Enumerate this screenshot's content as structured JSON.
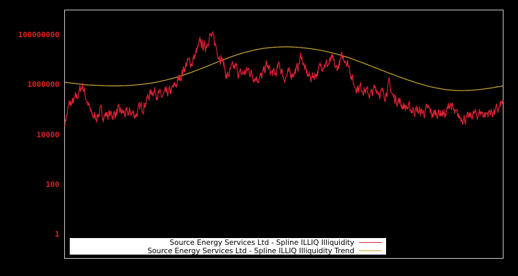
{
  "chart_data": {
    "type": "line",
    "title": "",
    "xlabel": "",
    "ylabel": "",
    "yscale": "log",
    "ylim": [
      0.1,
      1000000000
    ],
    "y_ticks": [
      {
        "label": "100000000",
        "value": 100000000
      },
      {
        "label": "1000000",
        "value": 1000000
      },
      {
        "label": "10000",
        "value": 10000
      },
      {
        "label": "100",
        "value": 100
      },
      {
        "label": "1",
        "value": 1
      }
    ],
    "x_ticks": [],
    "grid": false,
    "legend_position": "lower center",
    "x": "index (0-100, normalized time; no x tick labels shown)",
    "series": [
      {
        "name": "Source Energy Services Ltd - Spline ILLIQ Illiquidity",
        "color": "#dd2233",
        "values_log10": [
          4.5,
          5.2,
          5.3,
          5.6,
          6.0,
          5.4,
          4.8,
          4.7,
          4.9,
          4.8,
          4.8,
          4.8,
          4.9,
          4.9,
          4.8,
          4.9,
          4.8,
          5.0,
          5.2,
          5.5,
          5.8,
          5.7,
          5.5,
          5.6,
          5.7,
          5.9,
          6.2,
          6.6,
          6.9,
          6.9,
          7.3,
          7.7,
          7.5,
          8.0,
          7.8,
          7.3,
          7.0,
          6.3,
          6.6,
          6.7,
          6.4,
          6.5,
          6.6,
          6.4,
          6.3,
          6.3,
          6.8,
          6.5,
          6.4,
          6.8,
          6.3,
          6.4,
          6.5,
          6.6,
          7.2,
          6.5,
          6.3,
          6.4,
          6.6,
          6.9,
          6.8,
          7.0,
          6.6,
          7.0,
          7.1,
          6.7,
          6.0,
          5.9,
          5.9,
          5.7,
          5.6,
          5.9,
          5.7,
          5.6,
          6.0,
          5.5,
          5.4,
          5.2,
          5.1,
          5.0,
          5.0,
          4.9,
          4.9,
          5.0,
          4.8,
          4.9,
          4.9,
          4.8,
          5.3,
          4.8,
          4.7,
          4.7,
          4.6,
          4.8,
          4.8,
          4.9,
          4.8,
          4.9,
          4.9,
          5.0,
          5.3
        ]
      },
      {
        "name": "Source Energy Services Ltd - Spline ILLIQ Illiquidity Trend",
        "color": "#ccaa33",
        "values_log10": [
          6.1,
          6.05,
          6.0,
          5.98,
          5.96,
          5.96,
          5.98,
          6.02,
          6.08,
          6.17,
          6.28,
          6.42,
          6.58,
          6.75,
          6.93,
          7.1,
          7.25,
          7.37,
          7.46,
          7.51,
          7.53,
          7.52,
          7.48,
          7.42,
          7.33,
          7.22,
          7.08,
          6.92,
          6.75,
          6.58,
          6.41,
          6.25,
          6.1,
          5.97,
          5.87,
          5.8,
          5.77,
          5.78,
          5.82,
          5.88,
          5.95
        ]
      }
    ]
  },
  "legend": {
    "items": [
      {
        "label": "Source Energy Services Ltd - Spline ILLIQ Illiquidity",
        "color": "#dd2233"
      },
      {
        "label": "Source Energy Services Ltd - Spline ILLIQ Illiquidity Trend",
        "color": "#ccaa33"
      }
    ]
  },
  "axis_labels": {
    "y0": "100000000",
    "y1": "1000000",
    "y2": "10000",
    "y3": "100",
    "y4": "1"
  },
  "colors": {
    "background": "#000000",
    "frame": "#cccccc",
    "tick_text": "#dd2222",
    "legend_bg": "#ffffff"
  }
}
